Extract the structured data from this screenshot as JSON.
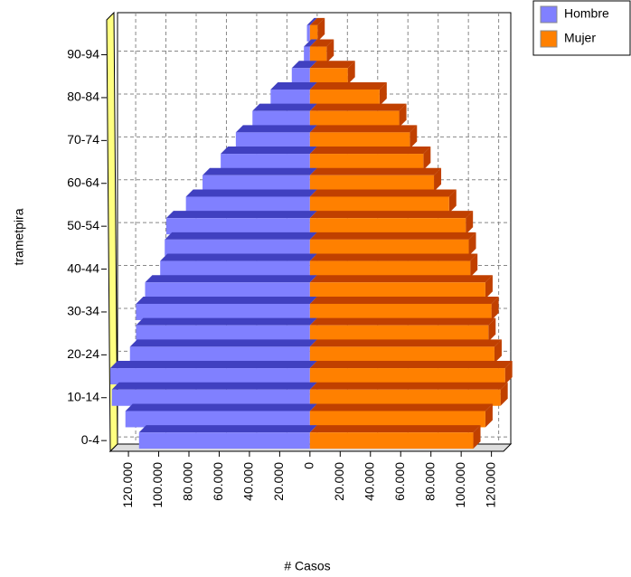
{
  "chart_data": {
    "type": "bar",
    "orientation": "horizontal",
    "stacked": false,
    "xlabel": "# Casos",
    "ylabel": "trametpira",
    "categories": [
      "0-4",
      null,
      "10-14",
      null,
      "20-24",
      null,
      "30-34",
      null,
      "40-44",
      null,
      "50-54",
      null,
      "60-64",
      null,
      "70-74",
      null,
      "80-84",
      null,
      "90-94",
      null
    ],
    "series": [
      {
        "name": "Hombre",
        "color": "#8080ff",
        "values": [
          -113000,
          -122000,
          -131000,
          -132000,
          -119000,
          -115000,
          -115000,
          -109000,
          -99000,
          -96000,
          -95000,
          -82000,
          -71000,
          -59000,
          -49000,
          -38000,
          -26000,
          -12000,
          -4000,
          -2000
        ]
      },
      {
        "name": "Mujer",
        "color": "#ff8000",
        "values": [
          108000,
          116000,
          126000,
          129000,
          122000,
          118000,
          120000,
          116000,
          106000,
          105000,
          103000,
          92000,
          82000,
          75000,
          66000,
          59000,
          46000,
          25000,
          11000,
          5000
        ]
      }
    ],
    "xlim": [
      -132000,
      128000
    ],
    "xticks": [
      {
        "value": -120000,
        "label": "120.000"
      },
      {
        "value": -100000,
        "label": "100.000"
      },
      {
        "value": -80000,
        "label": "80.000"
      },
      {
        "value": -60000,
        "label": "60.000"
      },
      {
        "value": -40000,
        "label": "40.000"
      },
      {
        "value": -20000,
        "label": "20.000"
      },
      0,
      {
        "value": 20000,
        "label": "20.000"
      },
      {
        "value": 40000,
        "label": "40.000"
      },
      {
        "value": 60000,
        "label": "60.000"
      },
      {
        "value": 80000,
        "label": "80.000"
      },
      {
        "value": 100000,
        "label": "100.000"
      },
      {
        "value": 120000,
        "label": "120.000"
      }
    ],
    "grid": true,
    "legend": "upper right"
  }
}
